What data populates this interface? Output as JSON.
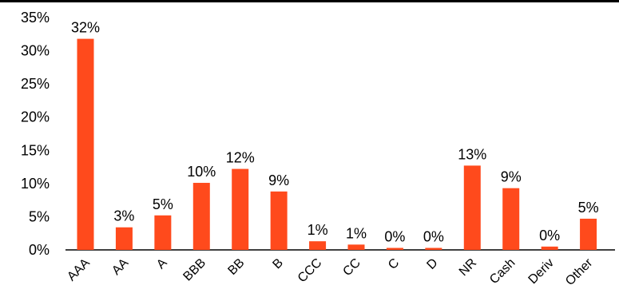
{
  "chart_data": {
    "type": "bar",
    "categories": [
      "AAA",
      "AA",
      "A",
      "BBB",
      "BB",
      "B",
      "CCC",
      "CC",
      "C",
      "D",
      "NR",
      "Cash",
      "Deriv",
      "Other"
    ],
    "values": [
      31.8,
      3.4,
      5.2,
      10.1,
      12.2,
      8.8,
      1.3,
      0.8,
      0.3,
      0.3,
      12.7,
      9.3,
      0.5,
      4.7
    ],
    "data_labels": [
      "32%",
      "3%",
      "5%",
      "10%",
      "12%",
      "9%",
      "1%",
      "1%",
      "0%",
      "0%",
      "13%",
      "9%",
      "0%",
      "5%"
    ],
    "y_ticks": [
      "0%",
      "5%",
      "10%",
      "15%",
      "20%",
      "25%",
      "30%",
      "35%"
    ],
    "ylim": [
      0,
      35
    ],
    "title": "",
    "xlabel": "",
    "ylabel": "",
    "grid": false,
    "bar_color": "#FF4A1C",
    "axis_color": "#000000",
    "top_border": true
  }
}
